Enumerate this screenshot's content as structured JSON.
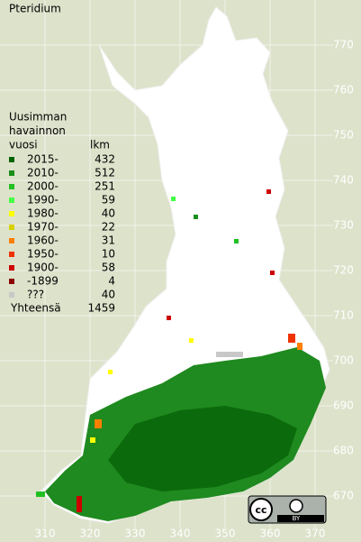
{
  "title": "Pteridium",
  "legend": {
    "header": [
      "Uusimman",
      "havainnon",
      "vuosi"
    ],
    "count_header": "lkm",
    "items": [
      {
        "label": "2015-",
        "count": 432,
        "color": "#006400"
      },
      {
        "label": "2010-",
        "count": 512,
        "color": "#1a8f1a"
      },
      {
        "label": "2000-",
        "count": 251,
        "color": "#22c022"
      },
      {
        "label": "1990-",
        "count": 59,
        "color": "#44ff44"
      },
      {
        "label": "1980-",
        "count": 40,
        "color": "#ffff00"
      },
      {
        "label": "1970-",
        "count": 22,
        "color": "#d8d000"
      },
      {
        "label": "1960-",
        "count": 31,
        "color": "#ff7f00"
      },
      {
        "label": "1950-",
        "count": 10,
        "color": "#ee3300"
      },
      {
        "label": "1900-",
        "count": 58,
        "color": "#cc0000"
      },
      {
        "label": "-1899",
        "count": 4,
        "color": "#8b0000"
      },
      {
        "label": "???",
        "count": 40,
        "color": "#c8c8c8"
      }
    ],
    "total_label": "Yhteensä",
    "total": 1459
  },
  "axes": {
    "xticks": [
      310,
      320,
      330,
      340,
      350,
      360,
      370
    ],
    "yticks": [
      670,
      680,
      690,
      700,
      710,
      720,
      730,
      740,
      750,
      760,
      770
    ]
  },
  "license": {
    "logo": "cc",
    "label": "BY"
  }
}
